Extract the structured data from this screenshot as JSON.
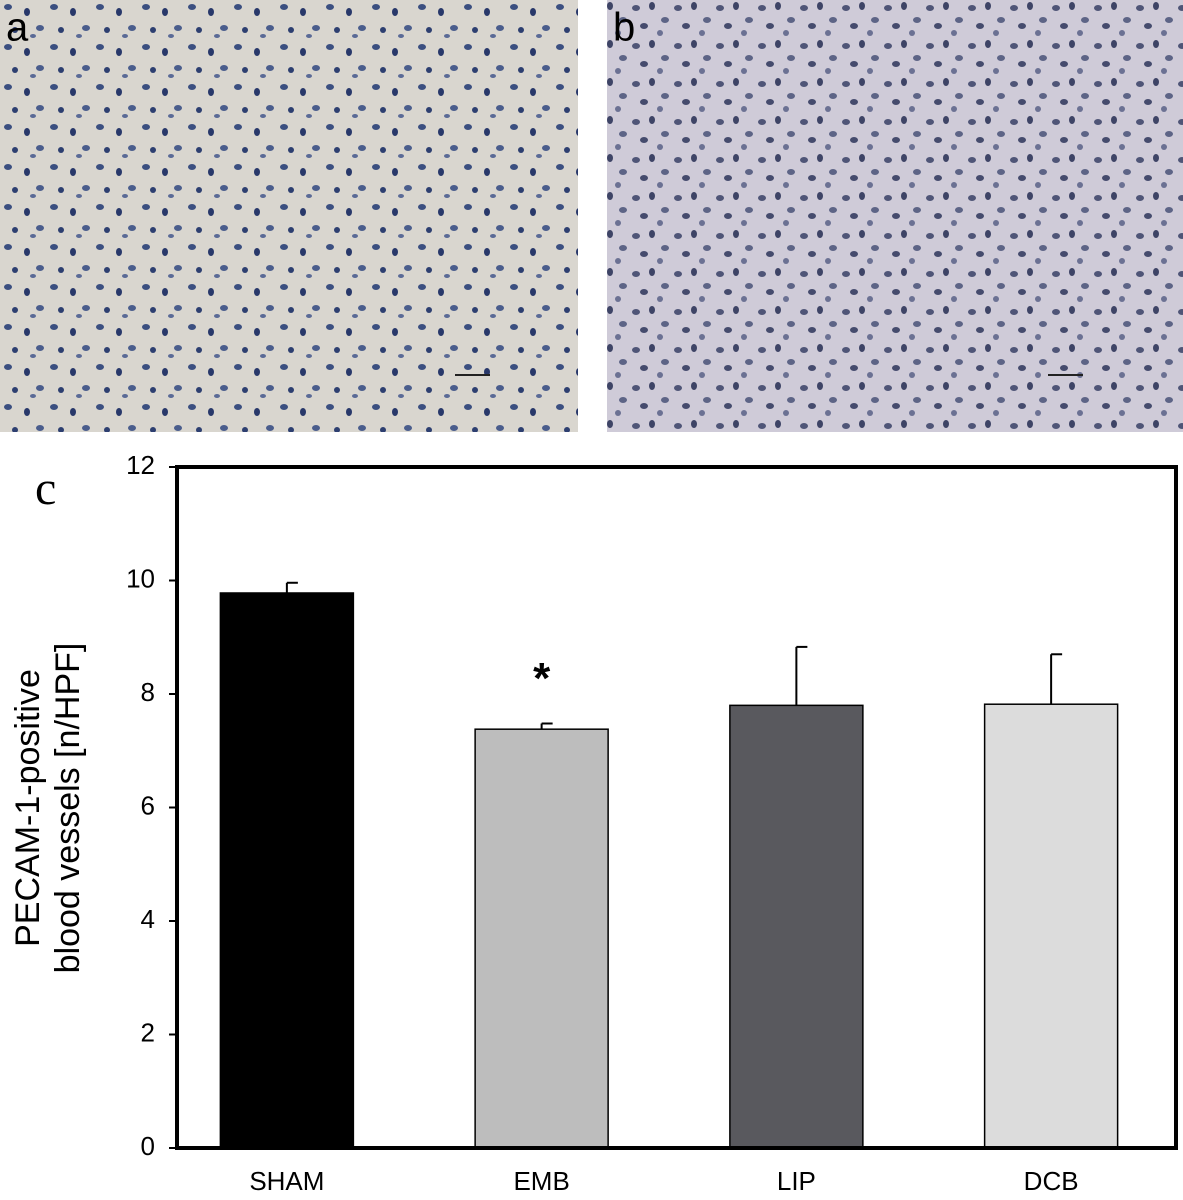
{
  "panels": {
    "a": "a",
    "b": "b"
  },
  "chart_data": {
    "type": "bar",
    "panel_label": "c",
    "ylabel_lines": [
      "PECAM-1-positive",
      "blood vessels [n/HPF]"
    ],
    "categories": [
      "SHAM",
      "EMB",
      "LIP",
      "DCB"
    ],
    "values": [
      9.78,
      7.38,
      7.8,
      7.82
    ],
    "errors": [
      0.18,
      0.1,
      1.03,
      0.88
    ],
    "colors": [
      "#000000",
      "#bdbdbd",
      "#59595e",
      "#dcdcdc"
    ],
    "annotations": [
      {
        "text": "*",
        "category": "EMB"
      }
    ],
    "ylim": [
      0,
      12
    ],
    "yticks": [
      0,
      2,
      4,
      6,
      8,
      10,
      12
    ],
    "grid": false
  }
}
